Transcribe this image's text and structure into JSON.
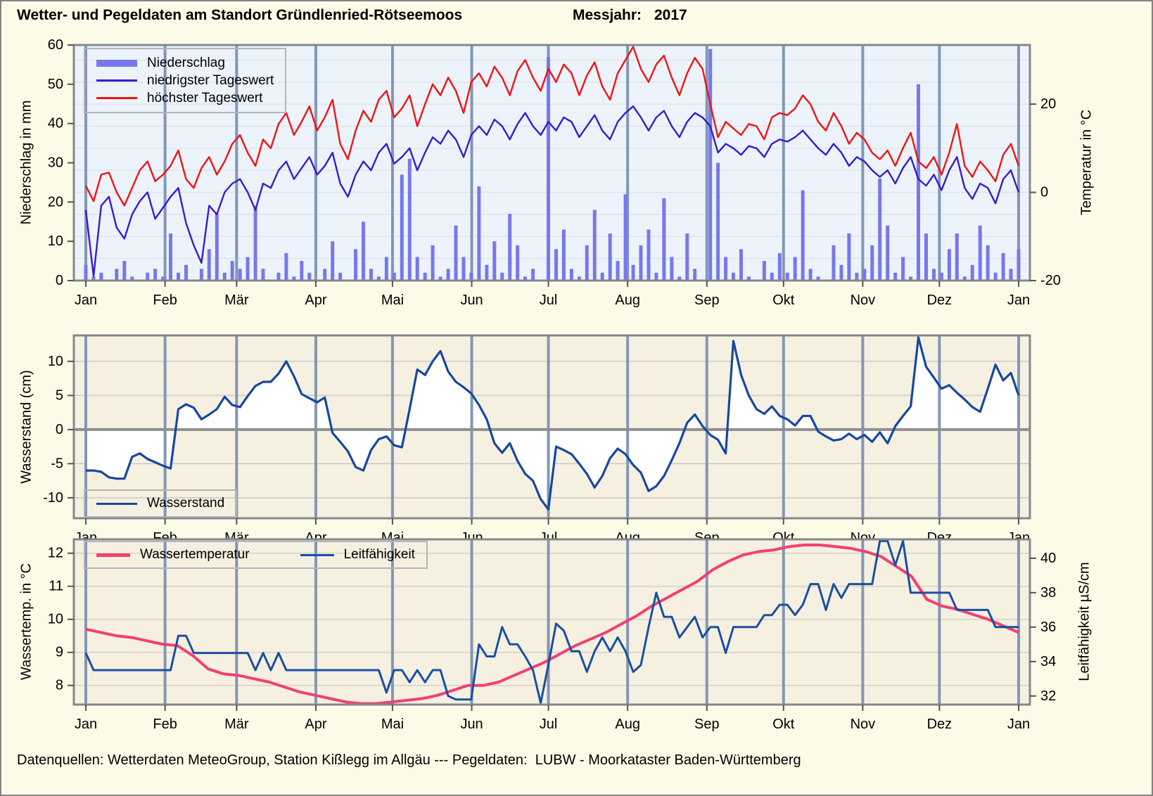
{
  "header": {
    "title": "Wetter- und Pegeldaten am Standort Gründlenried-Rötseemoos",
    "messjahr_label": "Messjahr:",
    "messjahr_value": "2017"
  },
  "footer": {
    "text": "Datenquellen: Wetterdaten MeteoGroup, Station Kißlegg im Allgäu --- Pegeldaten:  LUBW - Moorkataster Baden-Württemberg"
  },
  "months": {
    "labels": [
      "Jan",
      "Feb",
      "Mär",
      "Apr",
      "Mai",
      "Jun",
      "Jul",
      "Aug",
      "Sep",
      "Okt",
      "Nov",
      "Dez",
      "Jan"
    ],
    "cum_days": [
      0,
      31,
      59,
      90,
      120,
      151,
      181,
      212,
      243,
      273,
      304,
      334,
      365
    ]
  },
  "colors": {
    "page_bg": "#fbfbe7",
    "panel1_bg": "#edf3fa",
    "panel23_bg": "#f6f0e1",
    "month_gridline": "#8297b5",
    "panel_border": "#84888e",
    "precip_bar": "#7678ec",
    "tmin_line": "#3a1ad2",
    "tmax_line": "#ee1414",
    "wasserstand_line": "#17489f",
    "wassertemp_line": "#f14072",
    "leitfaehigkeit_line": "#1a4fa0"
  },
  "chart_data": [
    {
      "type": "combo-bar-line",
      "sampling": "values are ~3-day samples from day 1 to day 365 of 2017",
      "left_axis": {
        "label": "Niederschlag in mm",
        "range": [
          0,
          60
        ],
        "ticks": [
          0,
          10,
          20,
          30,
          40,
          50,
          60
        ],
        "unit": "mm"
      },
      "right_axis": {
        "label": "Temperatur in °C",
        "range": [
          -20,
          33.4
        ],
        "ticks": [
          -20,
          0,
          20
        ],
        "unit": "°C"
      },
      "series": [
        {
          "name": "Niederschlag",
          "type": "bar",
          "axis": "left",
          "unit": "mm",
          "color": "#7678ec",
          "values": [
            4,
            1,
            2,
            0,
            3,
            5,
            1,
            0,
            2,
            3,
            1,
            12,
            2,
            4,
            0,
            3,
            8,
            17,
            2,
            5,
            3,
            6,
            19,
            3,
            0,
            2,
            7,
            1,
            5,
            2,
            0,
            3,
            10,
            2,
            0,
            8,
            15,
            3,
            1,
            6,
            2,
            27,
            31,
            6,
            2,
            9,
            1,
            3,
            14,
            6,
            2,
            24,
            4,
            10,
            2,
            17,
            9,
            1,
            3,
            0,
            57,
            8,
            13,
            3,
            1,
            9,
            18,
            2,
            12,
            5,
            22,
            4,
            9,
            13,
            2,
            21,
            6,
            1,
            12,
            3,
            0,
            59,
            30,
            6,
            2,
            8,
            1,
            0,
            5,
            2,
            7,
            2,
            6,
            23,
            3,
            1,
            0,
            9,
            4,
            12,
            2,
            3,
            9,
            26,
            14,
            2,
            6,
            1,
            50,
            12,
            3,
            2,
            8,
            12,
            1,
            4,
            14,
            9,
            2,
            7,
            3,
            8
          ]
        },
        {
          "name": "niedrigster Tageswert",
          "type": "line",
          "axis": "right",
          "unit": "°C",
          "color": "#3a1ad2",
          "values": [
            -4,
            -19,
            -3,
            -1,
            -8,
            -10.5,
            -5,
            -2,
            0,
            -6,
            -3.5,
            -1,
            1,
            -7,
            -12,
            -16,
            -3,
            -5,
            0,
            2,
            3,
            0,
            -4,
            2,
            1,
            5,
            7,
            3,
            5.5,
            8,
            4,
            6,
            9,
            2,
            -1,
            4,
            7,
            5,
            9,
            11,
            6.5,
            8,
            10,
            5,
            9,
            12.5,
            11,
            14,
            12,
            8,
            13,
            15,
            13,
            16.5,
            15,
            12,
            15.5,
            18,
            15,
            13,
            16,
            14,
            17,
            16,
            12.5,
            15,
            17.5,
            14,
            12,
            16,
            18,
            19.5,
            17,
            14,
            17,
            18.5,
            15,
            12.5,
            16,
            18,
            17,
            15,
            9,
            11,
            10,
            8.5,
            10.5,
            10,
            8,
            11,
            12,
            11.5,
            12.5,
            14,
            12,
            10,
            8.5,
            11,
            9,
            6,
            8,
            7,
            5,
            3.5,
            5,
            2,
            5.5,
            8,
            3,
            1.5,
            4,
            0.5,
            5,
            8,
            1,
            -1.5,
            2,
            1,
            -2.5,
            3,
            5,
            0
          ]
        },
        {
          "name": "höchster Tageswert",
          "type": "line",
          "axis": "right",
          "unit": "°C",
          "color": "#ee1414",
          "values": [
            1.5,
            -2,
            4,
            4.5,
            0,
            -3,
            1,
            5,
            7,
            2.5,
            4,
            6,
            9.5,
            3,
            1,
            5.5,
            8,
            4,
            7,
            11,
            13,
            9,
            6,
            12,
            10,
            15.5,
            18,
            13,
            16,
            19.5,
            14,
            17,
            21,
            11,
            7.5,
            14,
            18.5,
            16,
            21,
            23,
            17,
            19,
            22,
            15,
            20,
            24.5,
            22,
            26,
            23,
            18,
            25,
            27,
            24,
            28.5,
            26,
            22,
            27.5,
            30,
            26,
            23,
            28,
            25,
            29,
            27,
            22,
            26.5,
            29.5,
            24,
            21,
            27,
            30,
            33,
            28,
            25,
            29,
            31,
            26,
            22,
            27,
            30.5,
            28,
            20,
            12.5,
            16,
            14.5,
            13,
            15.5,
            15,
            12,
            17,
            18,
            17.5,
            19,
            22,
            20,
            16,
            14,
            18,
            15,
            11,
            13.5,
            12,
            9,
            7.5,
            9.5,
            6,
            10,
            13.5,
            7,
            5.5,
            8,
            4,
            9,
            15.5,
            6,
            3.5,
            7,
            5,
            2.5,
            8.5,
            11,
            6
          ]
        }
      ]
    },
    {
      "type": "line",
      "sampling": "values are ~3-day samples from day 1 to day 365 of 2017",
      "left_axis": {
        "label": "Wasserstand (cm)",
        "range": [
          -13,
          13.8
        ],
        "ticks": [
          -10,
          -5,
          0,
          5,
          10
        ],
        "unit": "cm"
      },
      "series": [
        {
          "name": "Wasserstand",
          "type": "line",
          "axis": "left",
          "unit": "cm",
          "color": "#17489f",
          "fill_to_zero": "#ffffff",
          "values": [
            -6,
            -6,
            -6.2,
            -7,
            -7.2,
            -7.2,
            -4,
            -3.5,
            -4.3,
            -4.8,
            -5.3,
            -5.7,
            3,
            3.7,
            3.2,
            1.5,
            2.2,
            3,
            4.8,
            3.6,
            3.3,
            4.9,
            6.4,
            7,
            7,
            8.2,
            10,
            7.8,
            5.2,
            4.6,
            4,
            4.7,
            -0.5,
            -1.8,
            -3.2,
            -5.5,
            -6,
            -3,
            -1.4,
            -1,
            -2.3,
            -2.6,
            3,
            8.8,
            8,
            10,
            11.5,
            8.5,
            7,
            6.2,
            5.3,
            3.6,
            1.5,
            -2,
            -3.4,
            -2,
            -4.6,
            -6.5,
            -7.5,
            -10.2,
            -11.7,
            -2.5,
            -3,
            -3.6,
            -5,
            -6.5,
            -8.5,
            -6.8,
            -4.2,
            -2.8,
            -3.6,
            -5.2,
            -6.3,
            -9,
            -8.3,
            -6.8,
            -4.5,
            -2,
            1,
            2.2,
            0.5,
            -0.8,
            -1.5,
            -3.5,
            13,
            8,
            5,
            3,
            2.3,
            3.4,
            2,
            1.5,
            0.6,
            2,
            2,
            -0.3,
            -1,
            -1.6,
            -1.4,
            -0.6,
            -1.4,
            -0.8,
            -1.8,
            -0.4,
            -2,
            0.5,
            2,
            3.4,
            13.5,
            9.2,
            7.6,
            6,
            6.5,
            5.4,
            4.4,
            3.3,
            2.6,
            6,
            9.5,
            7.2,
            8.3,
            5
          ]
        }
      ]
    },
    {
      "type": "line",
      "sampling": "Wassertemperatur ~6-day samples, Leitfähigkeit ~3-day samples, day 1 to 365 of 2017",
      "left_axis": {
        "label": "Wassertemp. in °C",
        "range": [
          7.42,
          12.42
        ],
        "ticks": [
          8,
          9,
          10,
          11,
          12
        ],
        "unit": "°C"
      },
      "right_axis": {
        "label": "Leitfähigkeit µS/cm",
        "range": [
          31.5,
          41.1
        ],
        "ticks": [
          32,
          34,
          36,
          38,
          40
        ],
        "unit": "µS/cm"
      },
      "series": [
        {
          "name": "Wassertemperatur",
          "type": "line",
          "axis": "left",
          "unit": "°C",
          "color": "#f14072",
          "values": [
            9.7,
            9.6,
            9.5,
            9.45,
            9.35,
            9.25,
            9.2,
            8.9,
            8.5,
            8.35,
            8.3,
            8.2,
            8.1,
            7.95,
            7.8,
            7.7,
            7.6,
            7.5,
            7.45,
            7.45,
            7.5,
            7.55,
            7.6,
            7.7,
            7.85,
            8.0,
            8.0,
            8.1,
            8.3,
            8.5,
            8.7,
            8.95,
            9.2,
            9.4,
            9.6,
            9.85,
            10.1,
            10.4,
            10.65,
            10.9,
            11.15,
            11.5,
            11.75,
            11.95,
            12.05,
            12.1,
            12.2,
            12.25,
            12.25,
            12.2,
            12.15,
            12.05,
            11.9,
            11.6,
            11.3,
            10.6,
            10.4,
            10.3,
            10.15,
            10.0,
            9.8,
            9.6
          ]
        },
        {
          "name": "Leitfähigkeit",
          "type": "line",
          "axis": "right",
          "unit": "µS/cm",
          "color": "#1a4fa0",
          "values": [
            34.5,
            33.5,
            33.5,
            33.5,
            33.5,
            33.5,
            33.5,
            33.5,
            33.5,
            33.5,
            33.5,
            33.5,
            35.5,
            35.5,
            34.5,
            34.5,
            34.5,
            34.5,
            34.5,
            34.5,
            34.5,
            34.5,
            33.5,
            34.5,
            33.5,
            34.5,
            33.5,
            33.5,
            33.5,
            33.5,
            33.5,
            33.5,
            33.5,
            33.5,
            33.5,
            33.5,
            33.5,
            33.5,
            33.5,
            32.2,
            33.5,
            33.5,
            32.8,
            33.5,
            32.8,
            33.5,
            33.5,
            32.0,
            31.8,
            31.8,
            31.8,
            35.0,
            34.3,
            34.3,
            36.0,
            35.0,
            35.0,
            34.3,
            33.5,
            31.6,
            33.8,
            36.2,
            35.8,
            34.6,
            34.6,
            33.4,
            34.6,
            35.4,
            34.6,
            35.4,
            34.6,
            33.4,
            33.8,
            36.0,
            38.0,
            36.6,
            36.6,
            35.4,
            36.0,
            36.6,
            35.4,
            36.0,
            36.0,
            34.5,
            36.0,
            36.0,
            36.0,
            36.0,
            36.7,
            36.7,
            37.3,
            37.3,
            36.7,
            37.3,
            38.5,
            38.5,
            37.0,
            38.5,
            37.7,
            38.5,
            38.5,
            38.5,
            38.5,
            41.0,
            41.0,
            39.6,
            41.0,
            38.0,
            38.0,
            38.0,
            38.0,
            38.0,
            38.0,
            37.0,
            37.0,
            37.0,
            37.0,
            37.0,
            36.0,
            36.0,
            36.0,
            36.0
          ]
        }
      ]
    }
  ]
}
